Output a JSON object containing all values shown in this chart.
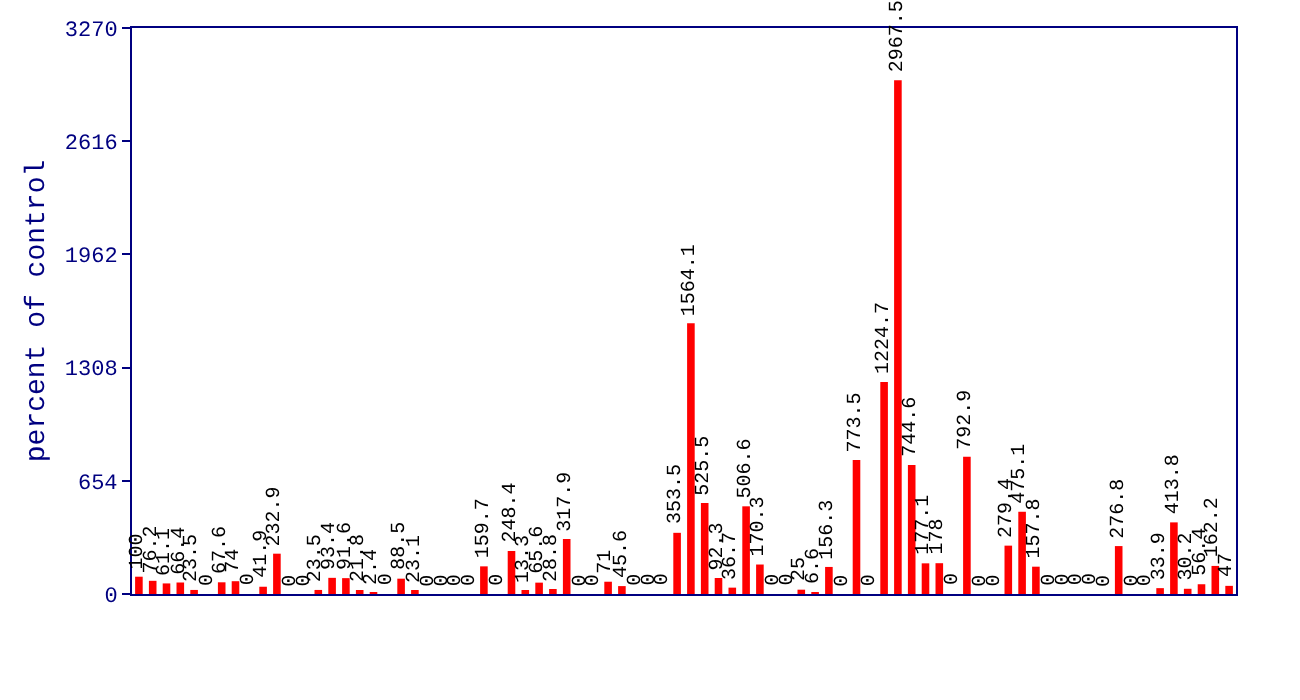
{
  "chart_data": {
    "type": "bar",
    "ylabel": "percent of control",
    "categories": [
      null,
      null,
      null,
      null,
      null,
      null,
      null,
      null,
      null,
      null,
      null,
      null,
      null,
      null,
      null,
      null,
      null,
      null,
      null,
      null,
      null,
      null,
      null,
      null,
      null,
      null,
      null,
      null,
      null,
      null,
      null,
      null,
      null,
      null,
      null,
      null,
      null,
      null,
      null,
      null,
      null,
      null,
      null,
      null,
      null,
      null,
      null,
      null,
      null,
      null,
      null,
      null,
      null,
      null,
      null,
      null,
      null,
      null,
      null,
      null,
      null,
      null,
      null,
      null,
      null,
      null,
      null,
      null,
      null,
      null,
      null,
      null,
      null,
      null,
      null,
      null,
      null,
      null,
      null,
      null
    ],
    "values": [
      100,
      76.2,
      61.1,
      66.4,
      23.5,
      0,
      67.6,
      74,
      0,
      41.9,
      232.9,
      0,
      0,
      23.5,
      93.4,
      91.6,
      21.8,
      2.4,
      0,
      88.5,
      23.1,
      0,
      0,
      0,
      0,
      159.7,
      0,
      248.4,
      13.3,
      65.6,
      28.8,
      317.9,
      0,
      0,
      71,
      45.6,
      0,
      0,
      0,
      353.5,
      1564.1,
      525.5,
      92.3,
      36.7,
      506.6,
      170.3,
      0,
      0,
      25,
      6.6,
      156.3,
      0,
      773.5,
      0,
      1224.7,
      2967.5,
      744.6,
      177.1,
      178,
      0,
      792.9,
      0,
      0,
      279.4,
      475.1,
      157.8,
      0,
      0,
      0,
      0,
      0,
      276.8,
      0,
      0,
      33.9,
      413.8,
      30.2,
      56.4,
      162.2,
      47
    ],
    "color": "#ff0000",
    "ylim": [
      0,
      3270
    ],
    "yticks": [
      0,
      654,
      1308,
      1962,
      2616,
      3270
    ],
    "data_labels": true,
    "legend": false
  }
}
